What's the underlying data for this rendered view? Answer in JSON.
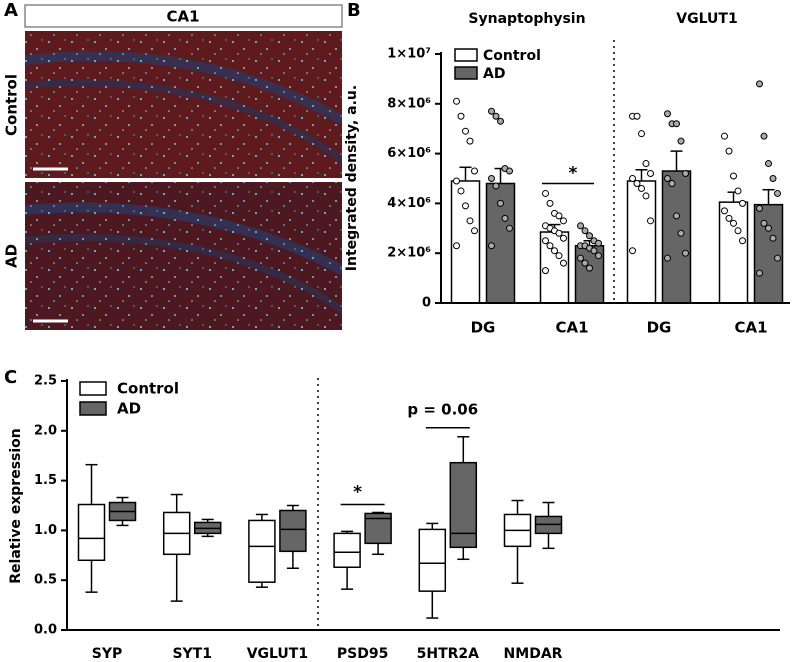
{
  "panel_a": {
    "label": "A",
    "title": "CA1",
    "rows": [
      "Control",
      "AD"
    ]
  },
  "chart_data": [
    {
      "type": "bar",
      "label": "B",
      "group_titles": [
        "Synaptophysin",
        "VGLUT1"
      ],
      "categories": [
        "DG",
        "CA1",
        "DG",
        "CA1"
      ],
      "y_label": "Integrated density, a.u.",
      "ylim": [
        0,
        10000000
      ],
      "yticks": [
        0,
        {
          "value": 2000000,
          "label": "2×10⁶"
        },
        {
          "value": 4000000,
          "label": "4×10⁶"
        },
        {
          "value": 6000000,
          "label": "6×10⁶"
        },
        {
          "value": 8000000,
          "label": "8×10⁶"
        },
        {
          "value": 10000000,
          "label": "1×10⁷"
        }
      ],
      "annotations": [
        "*"
      ],
      "series": [
        {
          "name": "Control",
          "color": "#ffffff",
          "values": [
            4900000,
            2850000,
            4900000,
            4050000
          ],
          "errors": [
            550000,
            300000,
            450000,
            400000
          ],
          "points": [
            [
              8100000,
              7500000,
              6900000,
              6500000,
              5300000,
              4900000,
              4500000,
              3900000,
              3300000,
              2900000,
              2300000
            ],
            [
              4400000,
              4000000,
              3600000,
              3500000,
              3300000,
              3100000,
              3000000,
              2900000,
              2800000,
              2600000,
              2500000,
              2300000,
              2100000,
              1900000,
              1600000,
              1300000
            ],
            [
              7500000,
              7500000,
              6800000,
              5600000,
              5200000,
              5000000,
              4800000,
              4600000,
              4300000,
              3300000,
              2100000
            ],
            [
              6700000,
              6100000,
              5100000,
              4500000,
              4000000,
              3700000,
              3400000,
              3200000,
              2900000,
              2500000
            ]
          ]
        },
        {
          "name": "AD",
          "color": "#666666",
          "values": [
            4800000,
            2300000,
            5300000,
            3950000
          ],
          "errors": [
            600000,
            200000,
            800000,
            600000
          ],
          "points": [
            [
              7700000,
              7500000,
              7300000,
              5400000,
              5300000,
              5000000,
              4700000,
              4000000,
              3400000,
              3000000,
              2300000
            ],
            [
              3100000,
              2900000,
              2700000,
              2500000,
              2400000,
              2300000,
              2300000,
              2200000,
              2100000,
              1900000,
              1800000,
              1600000,
              1400000
            ],
            [
              7600000,
              7200000,
              7200000,
              6500000,
              5200000,
              5000000,
              4800000,
              3500000,
              2800000,
              2000000,
              1800000
            ],
            [
              8800000,
              6700000,
              5600000,
              5000000,
              4400000,
              3800000,
              3200000,
              3000000,
              2600000,
              1800000,
              1200000
            ]
          ]
        }
      ]
    },
    {
      "type": "box",
      "label": "C",
      "categories": [
        "SYP",
        "SYT1",
        "VGLUT1",
        "PSD95",
        "5HTR2A",
        "NMDAR"
      ],
      "y_label": "Relative expression",
      "ylim": [
        0,
        2.5
      ],
      "yticks": [
        {
          "value": 0,
          "label": "0.0"
        },
        0.5,
        {
          "value": 1,
          "label": "1.0"
        },
        1.5,
        {
          "value": 2,
          "label": "2.0"
        },
        2.5
      ],
      "annotations": [
        "*",
        "p = 0.06"
      ],
      "series": [
        {
          "name": "Control",
          "color": "#ffffff",
          "min": [
            0.38,
            0.29,
            0.43,
            0.41,
            0.12,
            0.47
          ],
          "q1": [
            0.7,
            0.76,
            0.48,
            0.63,
            0.39,
            0.84
          ],
          "median": [
            0.92,
            0.97,
            0.84,
            0.78,
            0.67,
            1.0
          ],
          "q3": [
            1.26,
            1.18,
            1.1,
            0.97,
            1.01,
            1.16
          ],
          "max": [
            1.66,
            1.36,
            1.16,
            0.99,
            1.07,
            1.3
          ]
        },
        {
          "name": "AD",
          "color": "#666666",
          "min": [
            1.05,
            0.94,
            0.62,
            0.76,
            0.71,
            0.82
          ],
          "q1": [
            1.1,
            0.97,
            0.79,
            0.87,
            0.83,
            0.97
          ],
          "median": [
            1.19,
            1.02,
            1.01,
            1.12,
            0.97,
            1.06
          ],
          "q3": [
            1.28,
            1.08,
            1.2,
            1.17,
            1.68,
            1.14
          ],
          "max": [
            1.33,
            1.11,
            1.25,
            1.18,
            1.94,
            1.28
          ]
        }
      ]
    }
  ]
}
